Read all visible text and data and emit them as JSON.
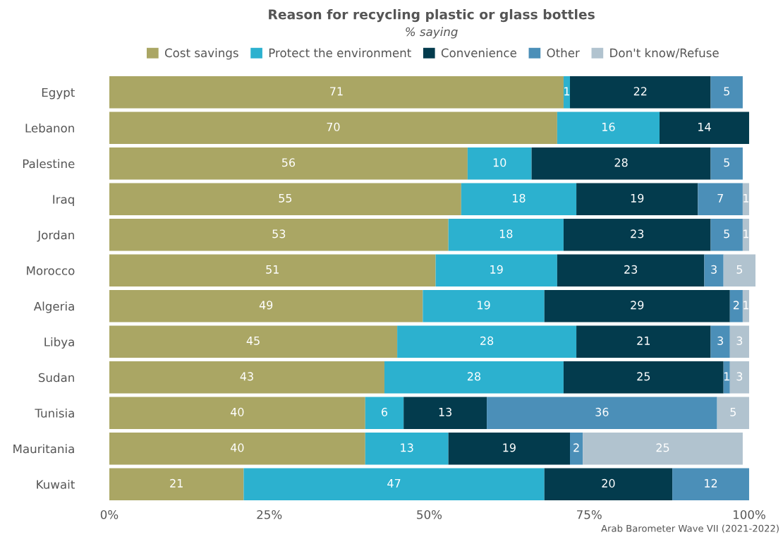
{
  "chart_data": {
    "type": "bar",
    "orientation": "horizontal",
    "stacked": true,
    "title": "Reason for recycling plastic or glass bottles",
    "subtitle": "% saying",
    "annotations": [
      "Arab Barometer Wave VII (2021-2022)"
    ],
    "categories": [
      "Egypt",
      "Lebanon",
      "Palestine",
      "Iraq",
      "Jordan",
      "Morocco",
      "Algeria",
      "Libya",
      "Sudan",
      "Tunisia",
      "Mauritania",
      "Kuwait"
    ],
    "series": [
      {
        "name": "Cost savings",
        "color": "#aaa664",
        "values": [
          71,
          70,
          56,
          55,
          53,
          51,
          49,
          45,
          43,
          40,
          40,
          21
        ]
      },
      {
        "name": "Protect the environment",
        "color": "#2cb1cf",
        "values": [
          1,
          16,
          10,
          18,
          18,
          19,
          19,
          28,
          28,
          6,
          13,
          47
        ]
      },
      {
        "name": "Convenience",
        "color": "#033b4d",
        "values": [
          22,
          14,
          28,
          19,
          23,
          23,
          29,
          21,
          25,
          13,
          19,
          20
        ]
      },
      {
        "name": "Other",
        "color": "#4b8fb8",
        "values": [
          5,
          null,
          5,
          7,
          5,
          3,
          2,
          3,
          1,
          36,
          2,
          12
        ]
      },
      {
        "name": "Don't know/Refuse",
        "color": "#b1c3cf",
        "values": [
          null,
          null,
          null,
          1,
          1,
          5,
          1,
          3,
          3,
          5,
          25,
          null
        ]
      }
    ],
    "xlim": [
      0,
      101
    ],
    "xticks": [
      {
        "value": 0,
        "label": "0%"
      },
      {
        "value": 25,
        "label": "25%"
      },
      {
        "value": 50,
        "label": "50%"
      },
      {
        "value": 75,
        "label": "75%"
      },
      {
        "value": 100,
        "label": "100%"
      }
    ],
    "data_labels": true,
    "grid": false,
    "legend": "top"
  }
}
